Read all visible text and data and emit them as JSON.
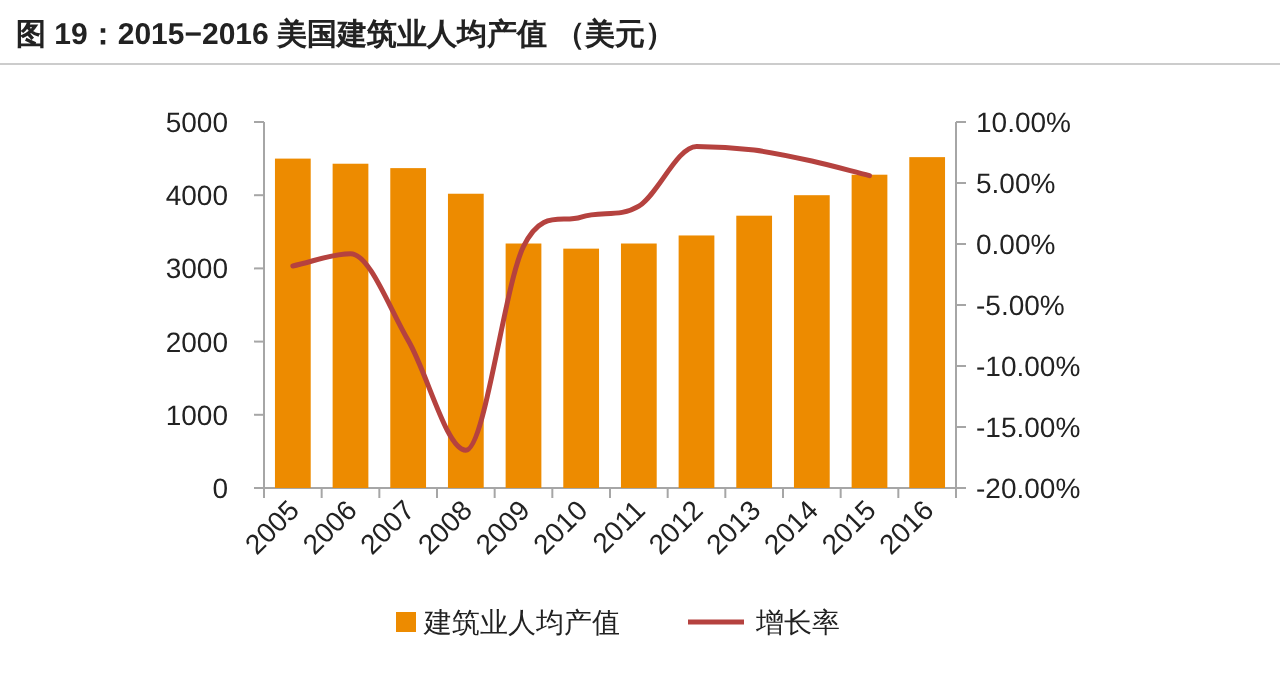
{
  "chart_data": {
    "type": "bar",
    "title": "图 19：2015−2016 美国建筑业人均产值 （美元）",
    "categories": [
      "2005",
      "2006",
      "2007",
      "2008",
      "2009",
      "2010",
      "2011",
      "2012",
      "2013",
      "2014",
      "2015",
      "2016"
    ],
    "series": [
      {
        "name": "建筑业人均产值",
        "color": "#ed8b00",
        "values": [
          4500,
          4430,
          4370,
          4020,
          3340,
          3270,
          3340,
          3450,
          3720,
          4000,
          4280,
          4520
        ]
      },
      {
        "name": "增长率",
        "type": "line",
        "axis": "y2",
        "color": "#b5423f",
        "values": [
          -1.8,
          -0.8,
          -7.9,
          -16.9,
          -0.2,
          2.2,
          3.1,
          8.0,
          7.7,
          6.8,
          5.6,
          null
        ]
      }
    ],
    "ylim": [
      0,
      5000
    ],
    "yticks": [
      0,
      1000,
      2000,
      3000,
      4000,
      5000
    ],
    "y2lim": [
      -20,
      10
    ],
    "y2ticks": [
      {
        "value": -20,
        "label": "-20.00%"
      },
      {
        "value": -15,
        "label": "-15.00%"
      },
      {
        "value": -10,
        "label": "-10.00%"
      },
      {
        "value": -5,
        "label": "-5.00%"
      },
      {
        "value": 0,
        "label": "0.00%"
      },
      {
        "value": 5,
        "label": "5.00%"
      },
      {
        "value": 10,
        "label": "10.00%"
      }
    ],
    "legend": "bottom"
  }
}
